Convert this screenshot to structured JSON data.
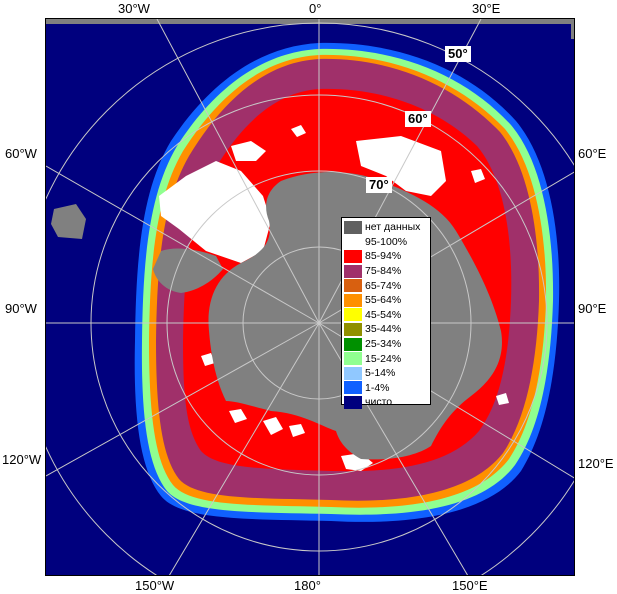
{
  "edge_labels": {
    "top": [
      "30°W",
      "0°",
      "30°E"
    ],
    "left": [
      "60°W",
      "90°W",
      "120°W"
    ],
    "right": [
      "60°E",
      "90°E",
      "120°E"
    ],
    "bottom": [
      "150°W",
      "180°",
      "150°E"
    ]
  },
  "lat_labels": [
    "50°",
    "60°",
    "70°"
  ],
  "legend": [
    {
      "label": "нет данных",
      "color": "#606060"
    },
    {
      "label": "95-100%",
      "color": "#ffffff"
    },
    {
      "label": "85-94%",
      "color": "#ff0000"
    },
    {
      "label": "75-84%",
      "color": "#a0306a"
    },
    {
      "label": "65-74%",
      "color": "#d86010"
    },
    {
      "label": "55-64%",
      "color": "#ff9000"
    },
    {
      "label": "45-54%",
      "color": "#ffff00"
    },
    {
      "label": "35-44%",
      "color": "#909000"
    },
    {
      "label": "25-34%",
      "color": "#009000"
    },
    {
      "label": "15-24%",
      "color": "#90ff90"
    },
    {
      "label": "5-14%",
      "color": "#90c8ff"
    },
    {
      "label": "1-4%",
      "color": "#1060ff"
    },
    {
      "label": "чисто",
      "color": "#00007e"
    }
  ],
  "colors": {
    "water": "#00007e",
    "land": "#808080",
    "grid": "#c8c8c8"
  }
}
